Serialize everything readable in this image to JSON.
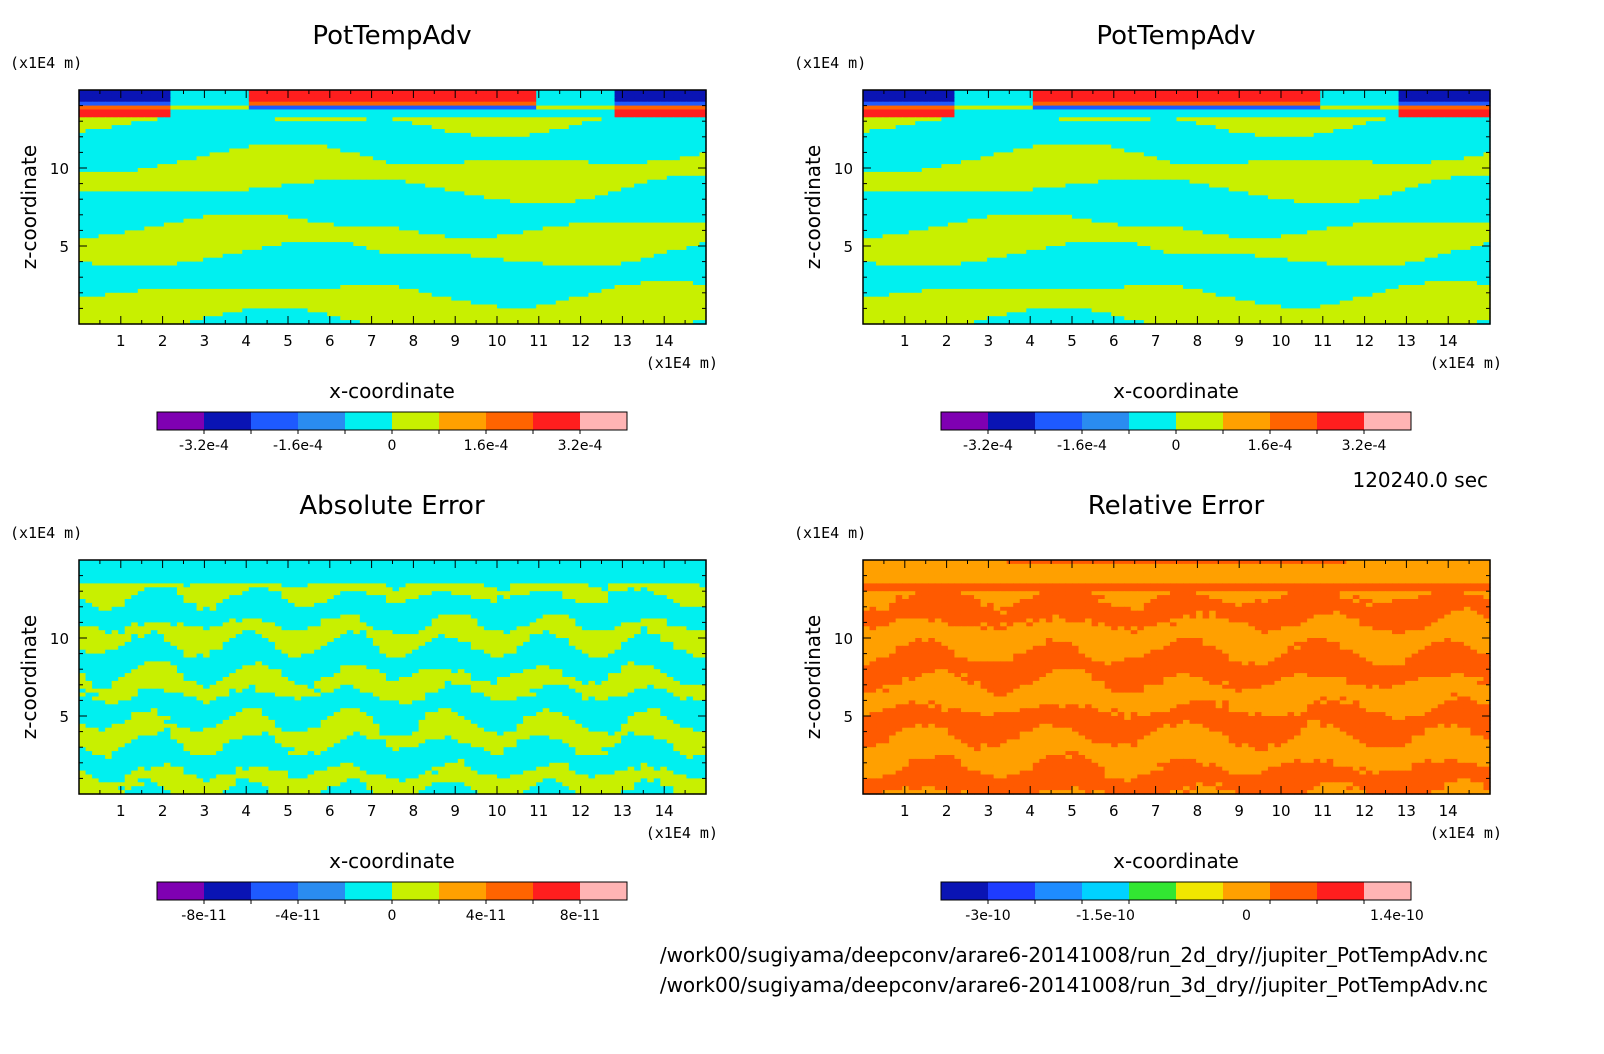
{
  "time_label": "120240.0 sec",
  "file_paths": [
    "/work00/sugiyama/deepconv/arare6-20141008/run_2d_dry//jupiter_PotTempAdv.nc",
    "/work00/sugiyama/deepconv/arare6-20141008/run_3d_dry//jupiter_PotTempAdv.nc"
  ],
  "chart_data": [
    {
      "type": "heatmap",
      "title": "PotTempAdv",
      "xlabel": "x-coordinate",
      "ylabel": "z-coordinate",
      "x_unit": "(x1E4 m)",
      "y_unit": "(x1E4 m)",
      "xlim": [
        0,
        15
      ],
      "ylim": [
        0,
        15
      ],
      "x_ticks": [
        "1",
        "2",
        "3",
        "4",
        "5",
        "6",
        "7",
        "8",
        "9",
        "10",
        "11",
        "12",
        "13",
        "14"
      ],
      "y_ticks": [
        "5",
        "10"
      ],
      "colorbar": {
        "colors": [
          "#7f00b2",
          "#0a14b4",
          "#1e5aff",
          "#2a8cf0",
          "#00f0f0",
          "#c8f000",
          "#ffa000",
          "#ff6400",
          "#ff1e1e",
          "#ffb4b4"
        ],
        "labels": [
          "-3.2e-4",
          "-1.6e-4",
          "0",
          "1.6e-4",
          "3.2e-4"
        ],
        "label_positions": [
          1,
          3,
          5,
          7,
          9
        ]
      },
      "pattern": "field"
    },
    {
      "type": "heatmap",
      "title": "PotTempAdv",
      "xlabel": "x-coordinate",
      "ylabel": "z-coordinate",
      "x_unit": "(x1E4 m)",
      "y_unit": "(x1E4 m)",
      "xlim": [
        0,
        15
      ],
      "ylim": [
        0,
        15
      ],
      "x_ticks": [
        "1",
        "2",
        "3",
        "4",
        "5",
        "6",
        "7",
        "8",
        "9",
        "10",
        "11",
        "12",
        "13",
        "14"
      ],
      "y_ticks": [
        "5",
        "10"
      ],
      "colorbar": {
        "colors": [
          "#7f00b2",
          "#0a14b4",
          "#1e5aff",
          "#2a8cf0",
          "#00f0f0",
          "#c8f000",
          "#ffa000",
          "#ff6400",
          "#ff1e1e",
          "#ffb4b4"
        ],
        "labels": [
          "-3.2e-4",
          "-1.6e-4",
          "0",
          "1.6e-4",
          "3.2e-4"
        ],
        "label_positions": [
          1,
          3,
          5,
          7,
          9
        ]
      },
      "pattern": "field"
    },
    {
      "type": "heatmap",
      "title": "Absolute Error",
      "xlabel": "x-coordinate",
      "ylabel": "z-coordinate",
      "x_unit": "(x1E4 m)",
      "y_unit": "(x1E4 m)",
      "xlim": [
        0,
        15
      ],
      "ylim": [
        0,
        15
      ],
      "x_ticks": [
        "1",
        "2",
        "3",
        "4",
        "5",
        "6",
        "7",
        "8",
        "9",
        "10",
        "11",
        "12",
        "13",
        "14"
      ],
      "y_ticks": [
        "5",
        "10"
      ],
      "colorbar": {
        "colors": [
          "#7f00b2",
          "#0a14b4",
          "#1e5aff",
          "#2a8cf0",
          "#00f0f0",
          "#c8f000",
          "#ffa000",
          "#ff6400",
          "#ff1e1e",
          "#ffb4b4"
        ],
        "labels": [
          "-8e-11",
          "-4e-11",
          "0",
          "4e-11",
          "8e-11"
        ],
        "label_positions": [
          1,
          3,
          5,
          7,
          9
        ]
      },
      "pattern": "abs_error"
    },
    {
      "type": "heatmap",
      "title": "Relative Error",
      "xlabel": "x-coordinate",
      "ylabel": "z-coordinate",
      "x_unit": "(x1E4 m)",
      "y_unit": "(x1E4 m)",
      "xlim": [
        0,
        15
      ],
      "ylim": [
        0,
        15
      ],
      "x_ticks": [
        "1",
        "2",
        "3",
        "4",
        "5",
        "6",
        "7",
        "8",
        "9",
        "10",
        "11",
        "12",
        "13",
        "14"
      ],
      "y_ticks": [
        "5",
        "10"
      ],
      "colorbar": {
        "colors": [
          "#0a14b4",
          "#1e3cff",
          "#1e8cff",
          "#00d2ff",
          "#32e632",
          "#f0e600",
          "#ffa000",
          "#ff5a00",
          "#ff1e1e",
          "#ffb4b4"
        ],
        "labels": [
          "-3e-10",
          "-1.5e-10",
          "0",
          "1.4e-10"
        ],
        "label_positions": [
          1,
          3.5,
          6.5,
          9.7
        ]
      },
      "pattern": "rel_error"
    }
  ]
}
